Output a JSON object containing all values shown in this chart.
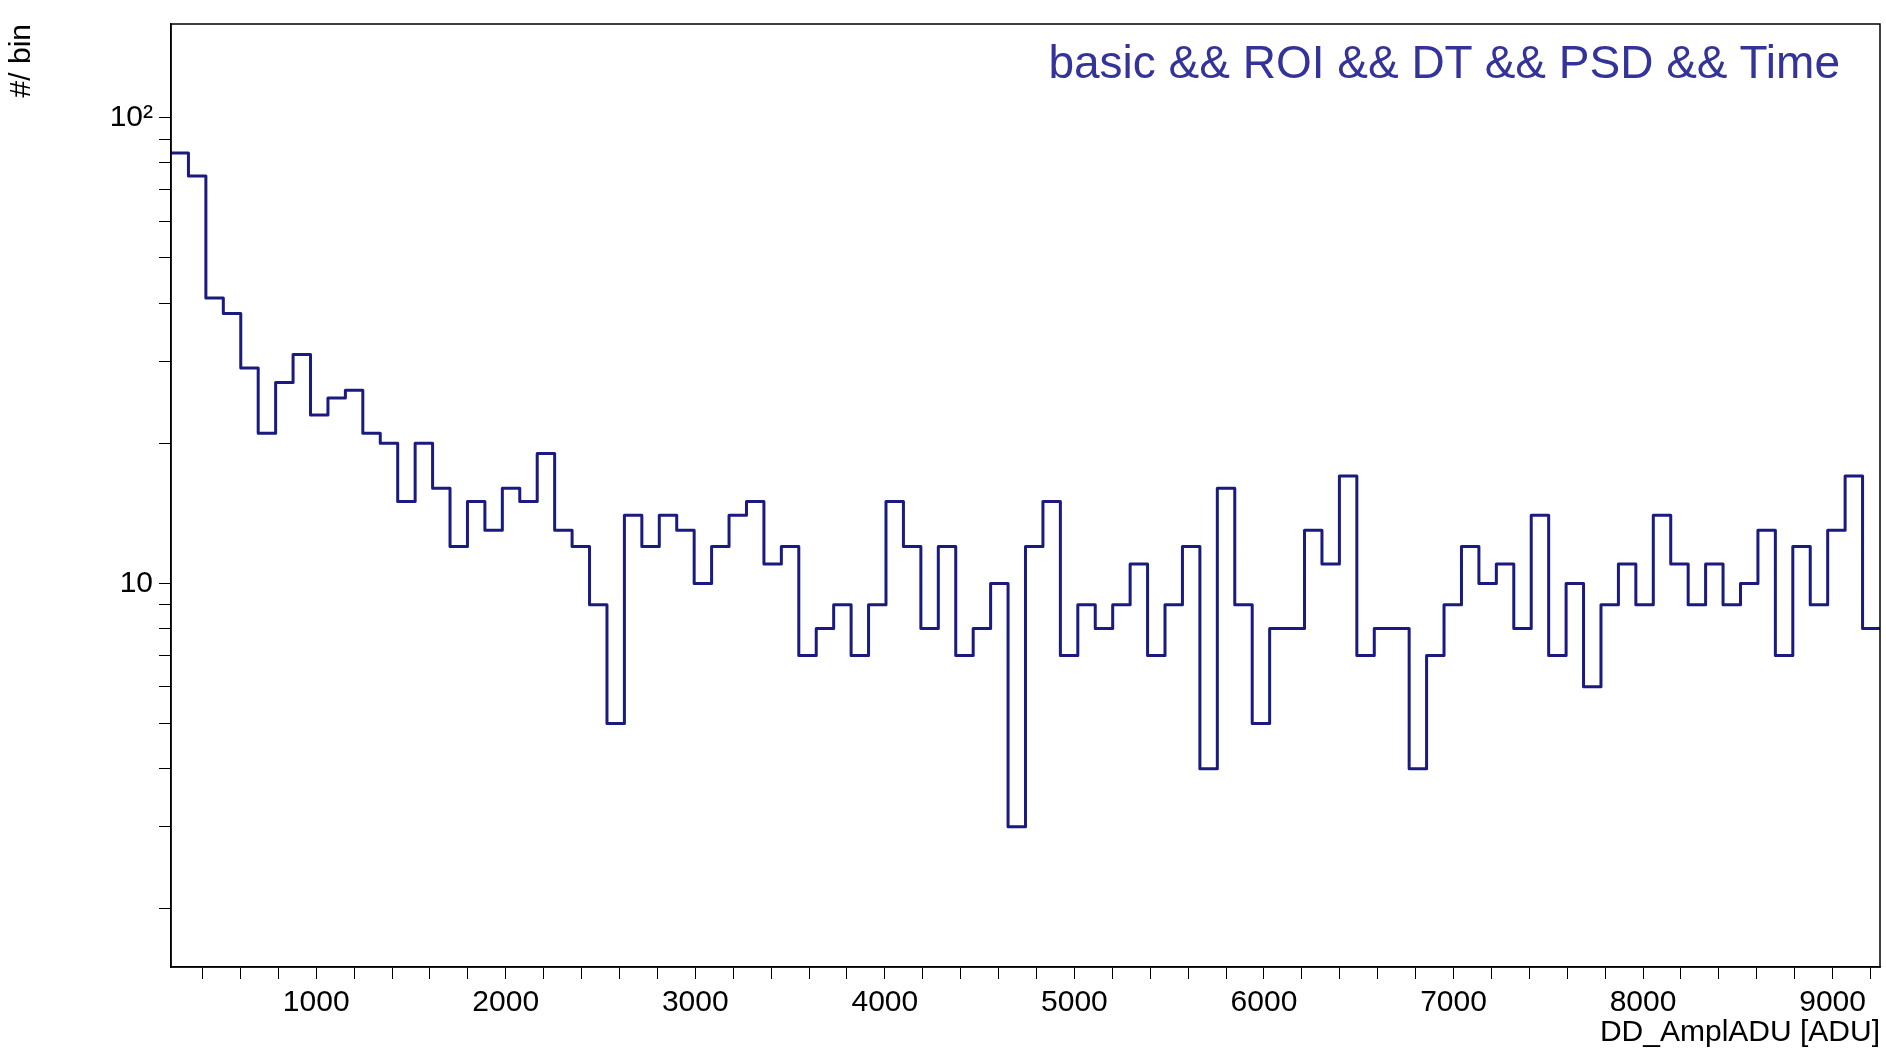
{
  "chart_data": {
    "type": "histogram",
    "title": "basic && ROI && DT && PSD && Time",
    "xlabel": "DD_AmplADU [ADU]",
    "ylabel": "#/ bin",
    "color": "#1a1a80",
    "log": "y",
    "grid": false,
    "legend": false,
    "bins": [
      234,
      326,
      418,
      510,
      602,
      694,
      786,
      878,
      970,
      1062,
      1154,
      1246,
      1338,
      1430,
      1522,
      1614,
      1706,
      1798,
      1890,
      1982,
      2074,
      2166,
      2258,
      2350,
      2442,
      2534,
      2626,
      2718,
      2810,
      2902,
      2994,
      3086,
      3178,
      3270,
      3362,
      3454,
      3546,
      3638,
      3730,
      3822,
      3914,
      4006,
      4098,
      4190,
      4282,
      4374,
      4466,
      4558,
      4650,
      4742,
      4834,
      4926,
      5018,
      5110,
      5202,
      5294,
      5386,
      5478,
      5570,
      5662,
      5754,
      5846,
      5938,
      6030,
      6122,
      6214,
      6306,
      6398,
      6490,
      6582,
      6674,
      6766,
      6858,
      6950,
      7042,
      7134,
      7226,
      7318,
      7410,
      7502,
      7594,
      7686,
      7778,
      7870,
      7962,
      8054,
      8146,
      8238,
      8330,
      8422,
      8514,
      8606,
      8698,
      8790,
      8882,
      8974,
      9066,
      9158,
      9250
    ],
    "values": [
      84,
      75,
      41,
      38,
      29,
      21,
      27,
      31,
      23,
      25,
      26,
      21,
      20,
      15,
      20,
      16,
      12,
      15,
      13,
      16,
      15,
      19,
      13,
      12,
      9,
      5,
      14,
      12,
      14,
      13,
      10,
      12,
      14,
      15,
      11,
      12,
      7,
      8,
      9,
      7,
      9,
      15,
      12,
      8,
      12,
      7,
      8,
      10,
      3,
      12,
      15,
      7,
      9,
      8,
      9,
      11,
      7,
      9,
      12,
      4,
      16,
      9,
      5,
      8,
      8,
      13,
      11,
      17,
      7,
      8,
      8,
      4,
      7,
      9,
      12,
      10,
      11,
      8,
      14,
      7,
      10,
      6,
      9,
      11,
      9,
      14,
      11,
      9,
      11,
      9,
      10,
      13,
      7,
      12,
      9,
      13,
      17,
      8
    ],
    "xlim": [
      234,
      9250
    ],
    "xticks": [
      {
        "value": 400,
        "label": null
      },
      {
        "value": 600,
        "label": null
      },
      {
        "value": 800,
        "label": null
      },
      1000,
      {
        "value": 1200,
        "label": null
      },
      {
        "value": 1400,
        "label": null
      },
      {
        "value": 1600,
        "label": null
      },
      {
        "value": 1800,
        "label": null
      },
      2000,
      {
        "value": 2200,
        "label": null
      },
      {
        "value": 2400,
        "label": null
      },
      {
        "value": 2600,
        "label": null
      },
      {
        "value": 2800,
        "label": null
      },
      3000,
      {
        "value": 3200,
        "label": null
      },
      {
        "value": 3400,
        "label": null
      },
      {
        "value": 3600,
        "label": null
      },
      {
        "value": 3800,
        "label": null
      },
      4000,
      {
        "value": 4200,
        "label": null
      },
      {
        "value": 4400,
        "label": null
      },
      {
        "value": 4600,
        "label": null
      },
      {
        "value": 4800,
        "label": null
      },
      5000,
      {
        "value": 5200,
        "label": null
      },
      {
        "value": 5400,
        "label": null
      },
      {
        "value": 5600,
        "label": null
      },
      {
        "value": 5800,
        "label": null
      },
      6000,
      {
        "value": 6200,
        "label": null
      },
      {
        "value": 6400,
        "label": null
      },
      {
        "value": 6600,
        "label": null
      },
      {
        "value": 6800,
        "label": null
      },
      7000,
      {
        "value": 7200,
        "label": null
      },
      {
        "value": 7400,
        "label": null
      },
      {
        "value": 7600,
        "label": null
      },
      {
        "value": 7800,
        "label": null
      },
      8000,
      {
        "value": 8200,
        "label": null
      },
      {
        "value": 8400,
        "label": null
      },
      {
        "value": 8600,
        "label": null
      },
      {
        "value": 8800,
        "label": null
      },
      9000,
      {
        "value": 9200,
        "label": null
      }
    ],
    "ylim": [
      1.5,
      159
    ],
    "yticks": [
      {
        "value": 2,
        "label": null
      },
      {
        "value": 3,
        "label": null
      },
      {
        "value": 4,
        "label": null
      },
      {
        "value": 5,
        "label": null
      },
      {
        "value": 6,
        "label": null
      },
      {
        "value": 7,
        "label": null
      },
      {
        "value": 8,
        "label": null
      },
      {
        "value": 9,
        "label": null
      },
      10,
      {
        "value": 20,
        "label": null
      },
      {
        "value": 30,
        "label": null
      },
      {
        "value": 40,
        "label": null
      },
      {
        "value": 50,
        "label": null
      },
      {
        "value": 60,
        "label": null
      },
      {
        "value": 70,
        "label": null
      },
      {
        "value": 80,
        "label": null
      },
      {
        "value": 90,
        "label": null
      },
      {
        "value": 100,
        "label": "10²"
      }
    ]
  }
}
